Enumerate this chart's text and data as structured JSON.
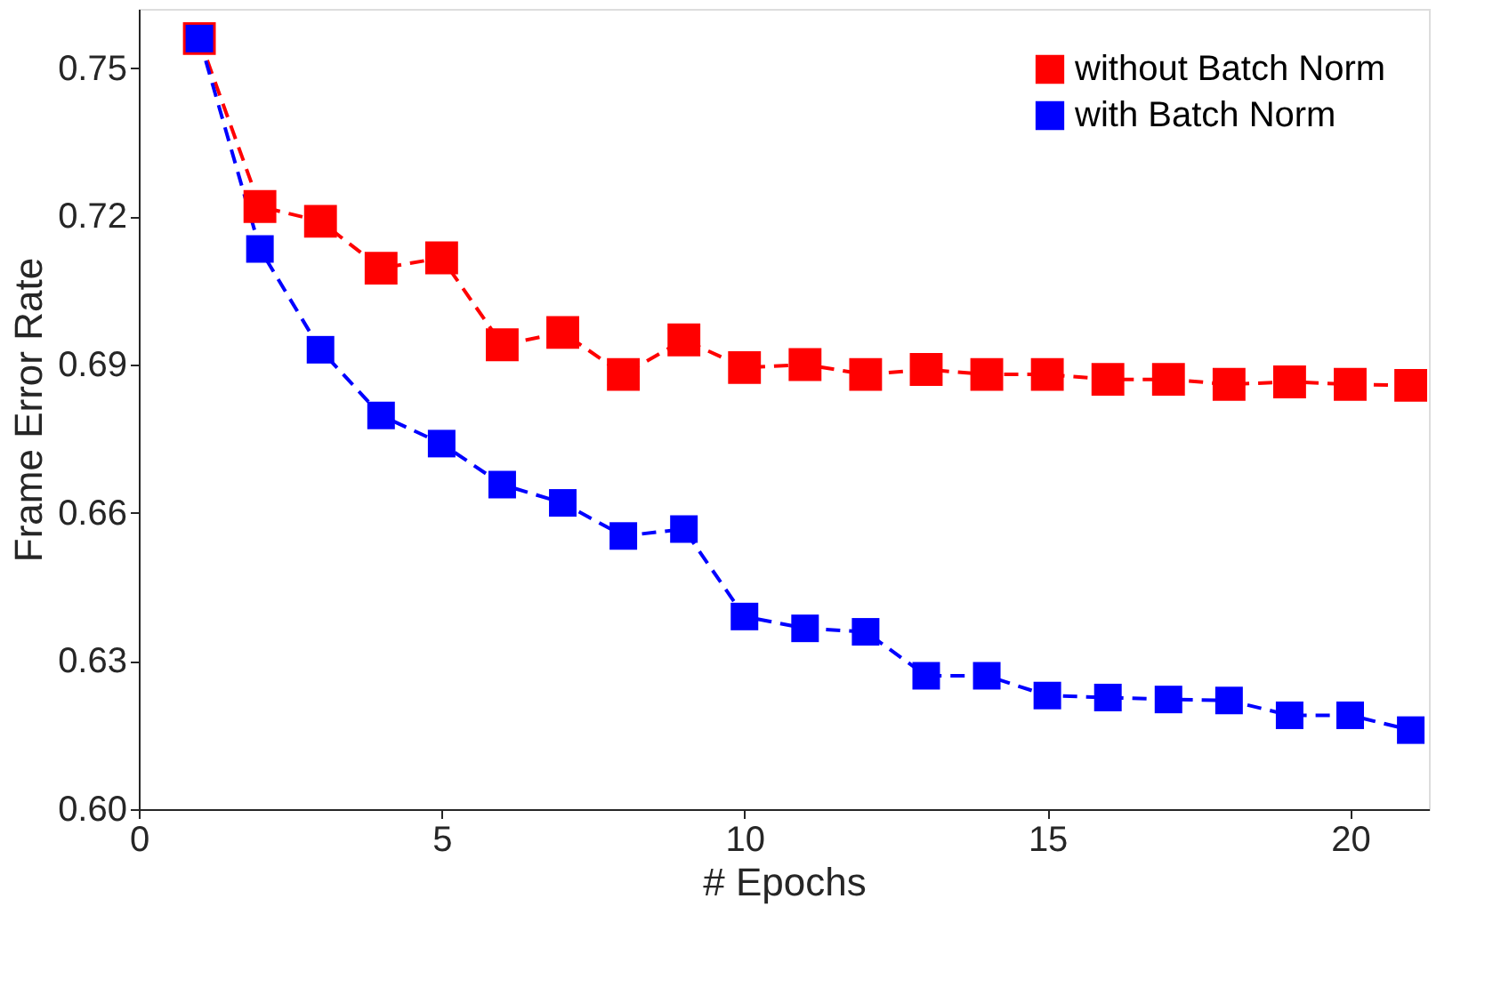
{
  "chart_data": {
    "type": "line",
    "xlabel": "# Epochs",
    "ylabel": "Frame Error Rate",
    "x": [
      1,
      2,
      3,
      4,
      5,
      6,
      7,
      8,
      9,
      10,
      11,
      12,
      13,
      14,
      15,
      16,
      17,
      18,
      19,
      20,
      21
    ],
    "series": [
      {
        "name": "without Batch Norm",
        "color": "#ff0000",
        "values": [
          0.756,
          0.722,
          0.719,
          0.7095,
          0.7116,
          0.694,
          0.6965,
          0.688,
          0.695,
          0.6894,
          0.69,
          0.688,
          0.689,
          0.688,
          0.688,
          0.687,
          0.687,
          0.686,
          0.6865,
          0.686,
          0.6858
        ]
      },
      {
        "name": "with Batch Norm",
        "color": "#0000ff",
        "values": [
          0.756,
          0.7134,
          0.693,
          0.6797,
          0.674,
          0.6657,
          0.662,
          0.6553,
          0.6567,
          0.639,
          0.6366,
          0.6359,
          0.627,
          0.627,
          0.623,
          0.6226,
          0.6222,
          0.622,
          0.619,
          0.619,
          0.616
        ]
      }
    ],
    "xlim": [
      0,
      21.3
    ],
    "xticks": [
      0,
      5,
      10,
      15,
      20
    ],
    "ylim": [
      0.6,
      0.762
    ],
    "yticks": [
      {
        "value": 0.6,
        "label": "0.60"
      },
      {
        "value": 0.63,
        "label": "0.63"
      },
      {
        "value": 0.66,
        "label": "0.66"
      },
      {
        "value": 0.69,
        "label": "0.69"
      },
      {
        "value": 0.72,
        "label": "0.72"
      },
      {
        "value": 0.75,
        "label": "0.75"
      }
    ],
    "grid": false,
    "legend": "top right",
    "marker": "square",
    "line_style": "dashed"
  }
}
